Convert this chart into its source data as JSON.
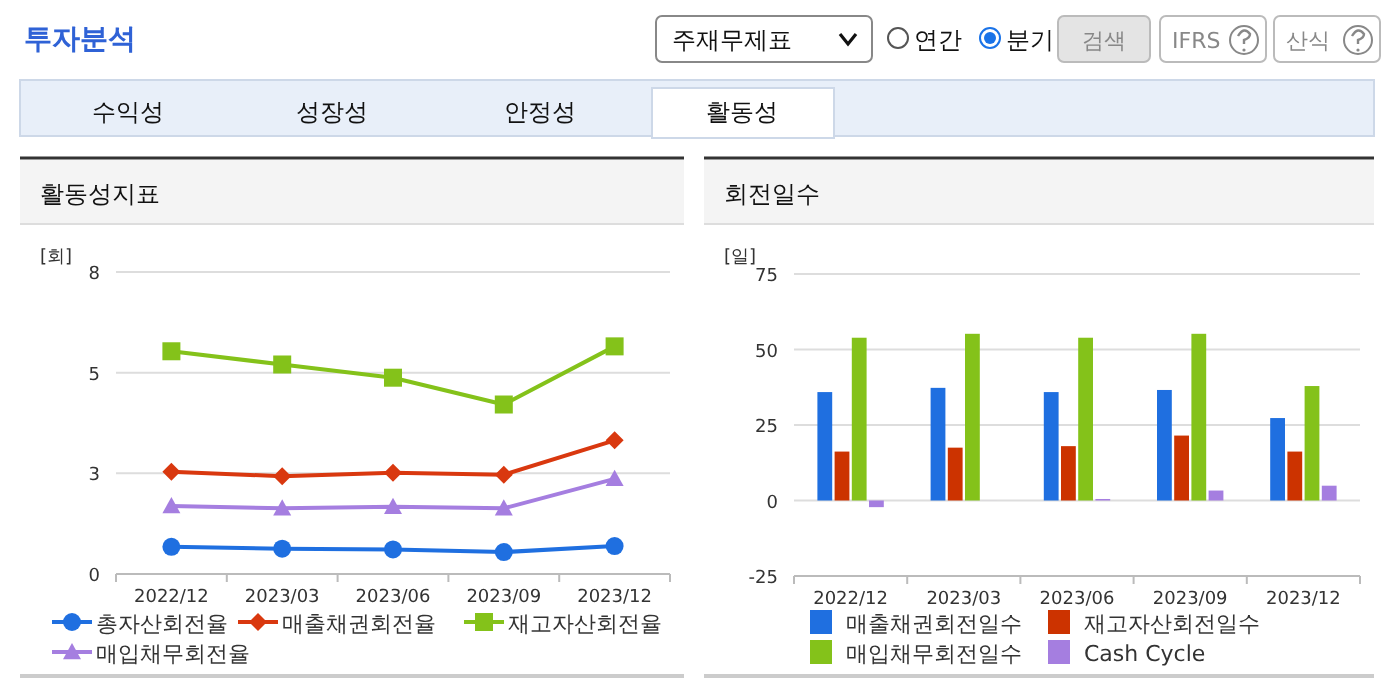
{
  "chart_data": [
    {
      "type": "other",
      "title": "투자분석",
      "annotations": [
        "주재무제표",
        "연간",
        "분기",
        "검색",
        "IFRS",
        "산식",
        "수익성",
        "성장성",
        "안정성",
        "활동성"
      ]
    },
    {
      "type": "line",
      "title": "활동성지표",
      "ylabel": "[회]",
      "categories": [
        "2022/12",
        "2023/03",
        "2023/06",
        "2023/09",
        "2023/12"
      ],
      "ylim": [
        0,
        8
      ],
      "yticks": [
        0,
        {
          "value": 2.67,
          "label": "3"
        },
        {
          "value": 5.33,
          "label": "5"
        },
        8
      ],
      "grid": "y",
      "legend": "bottom",
      "series": [
        {
          "name": "총자산회전율",
          "color": "#1f6fe0",
          "marker": "circle",
          "values": [
            0.72,
            0.67,
            0.65,
            0.58,
            0.74
          ]
        },
        {
          "name": "매출채권회전율",
          "color": "#d9380f",
          "marker": "diamond",
          "values": [
            2.71,
            2.59,
            2.68,
            2.63,
            3.54
          ]
        },
        {
          "name": "재고자산회전율",
          "color": "#84c21a",
          "marker": "square",
          "values": [
            5.9,
            5.55,
            5.2,
            4.49,
            6.03
          ]
        },
        {
          "name": "매입채무회전율",
          "color": "#a57ee0",
          "marker": "triangle",
          "values": [
            1.8,
            1.74,
            1.78,
            1.74,
            2.52
          ]
        }
      ]
    },
    {
      "type": "bar",
      "title": "회전일수",
      "ylabel": "[일]",
      "categories": [
        "2022/12",
        "2023/03",
        "2023/06",
        "2023/09",
        "2023/12"
      ],
      "ylim": [
        -25,
        75
      ],
      "yticks": [
        -25,
        0,
        25,
        50,
        75
      ],
      "grid": "y",
      "legend": "bottom",
      "series": [
        {
          "name": "매출채권회전일수",
          "color": "#1f6fe0",
          "values": [
            35.9,
            37.3,
            35.9,
            36.6,
            27.3
          ]
        },
        {
          "name": "재고자산회전일수",
          "color": "#cc3300",
          "values": [
            16.2,
            17.5,
            18,
            21.5,
            16.2
          ]
        },
        {
          "name": "매입채무회전일수",
          "color": "#84c21a",
          "values": [
            53.9,
            55.2,
            53.9,
            55.2,
            37.9
          ]
        },
        {
          "name": "Cash Cycle",
          "color": "#a57ee0",
          "values": [
            -2.2,
            0,
            0.5,
            3.3,
            4.9
          ]
        }
      ]
    }
  ]
}
